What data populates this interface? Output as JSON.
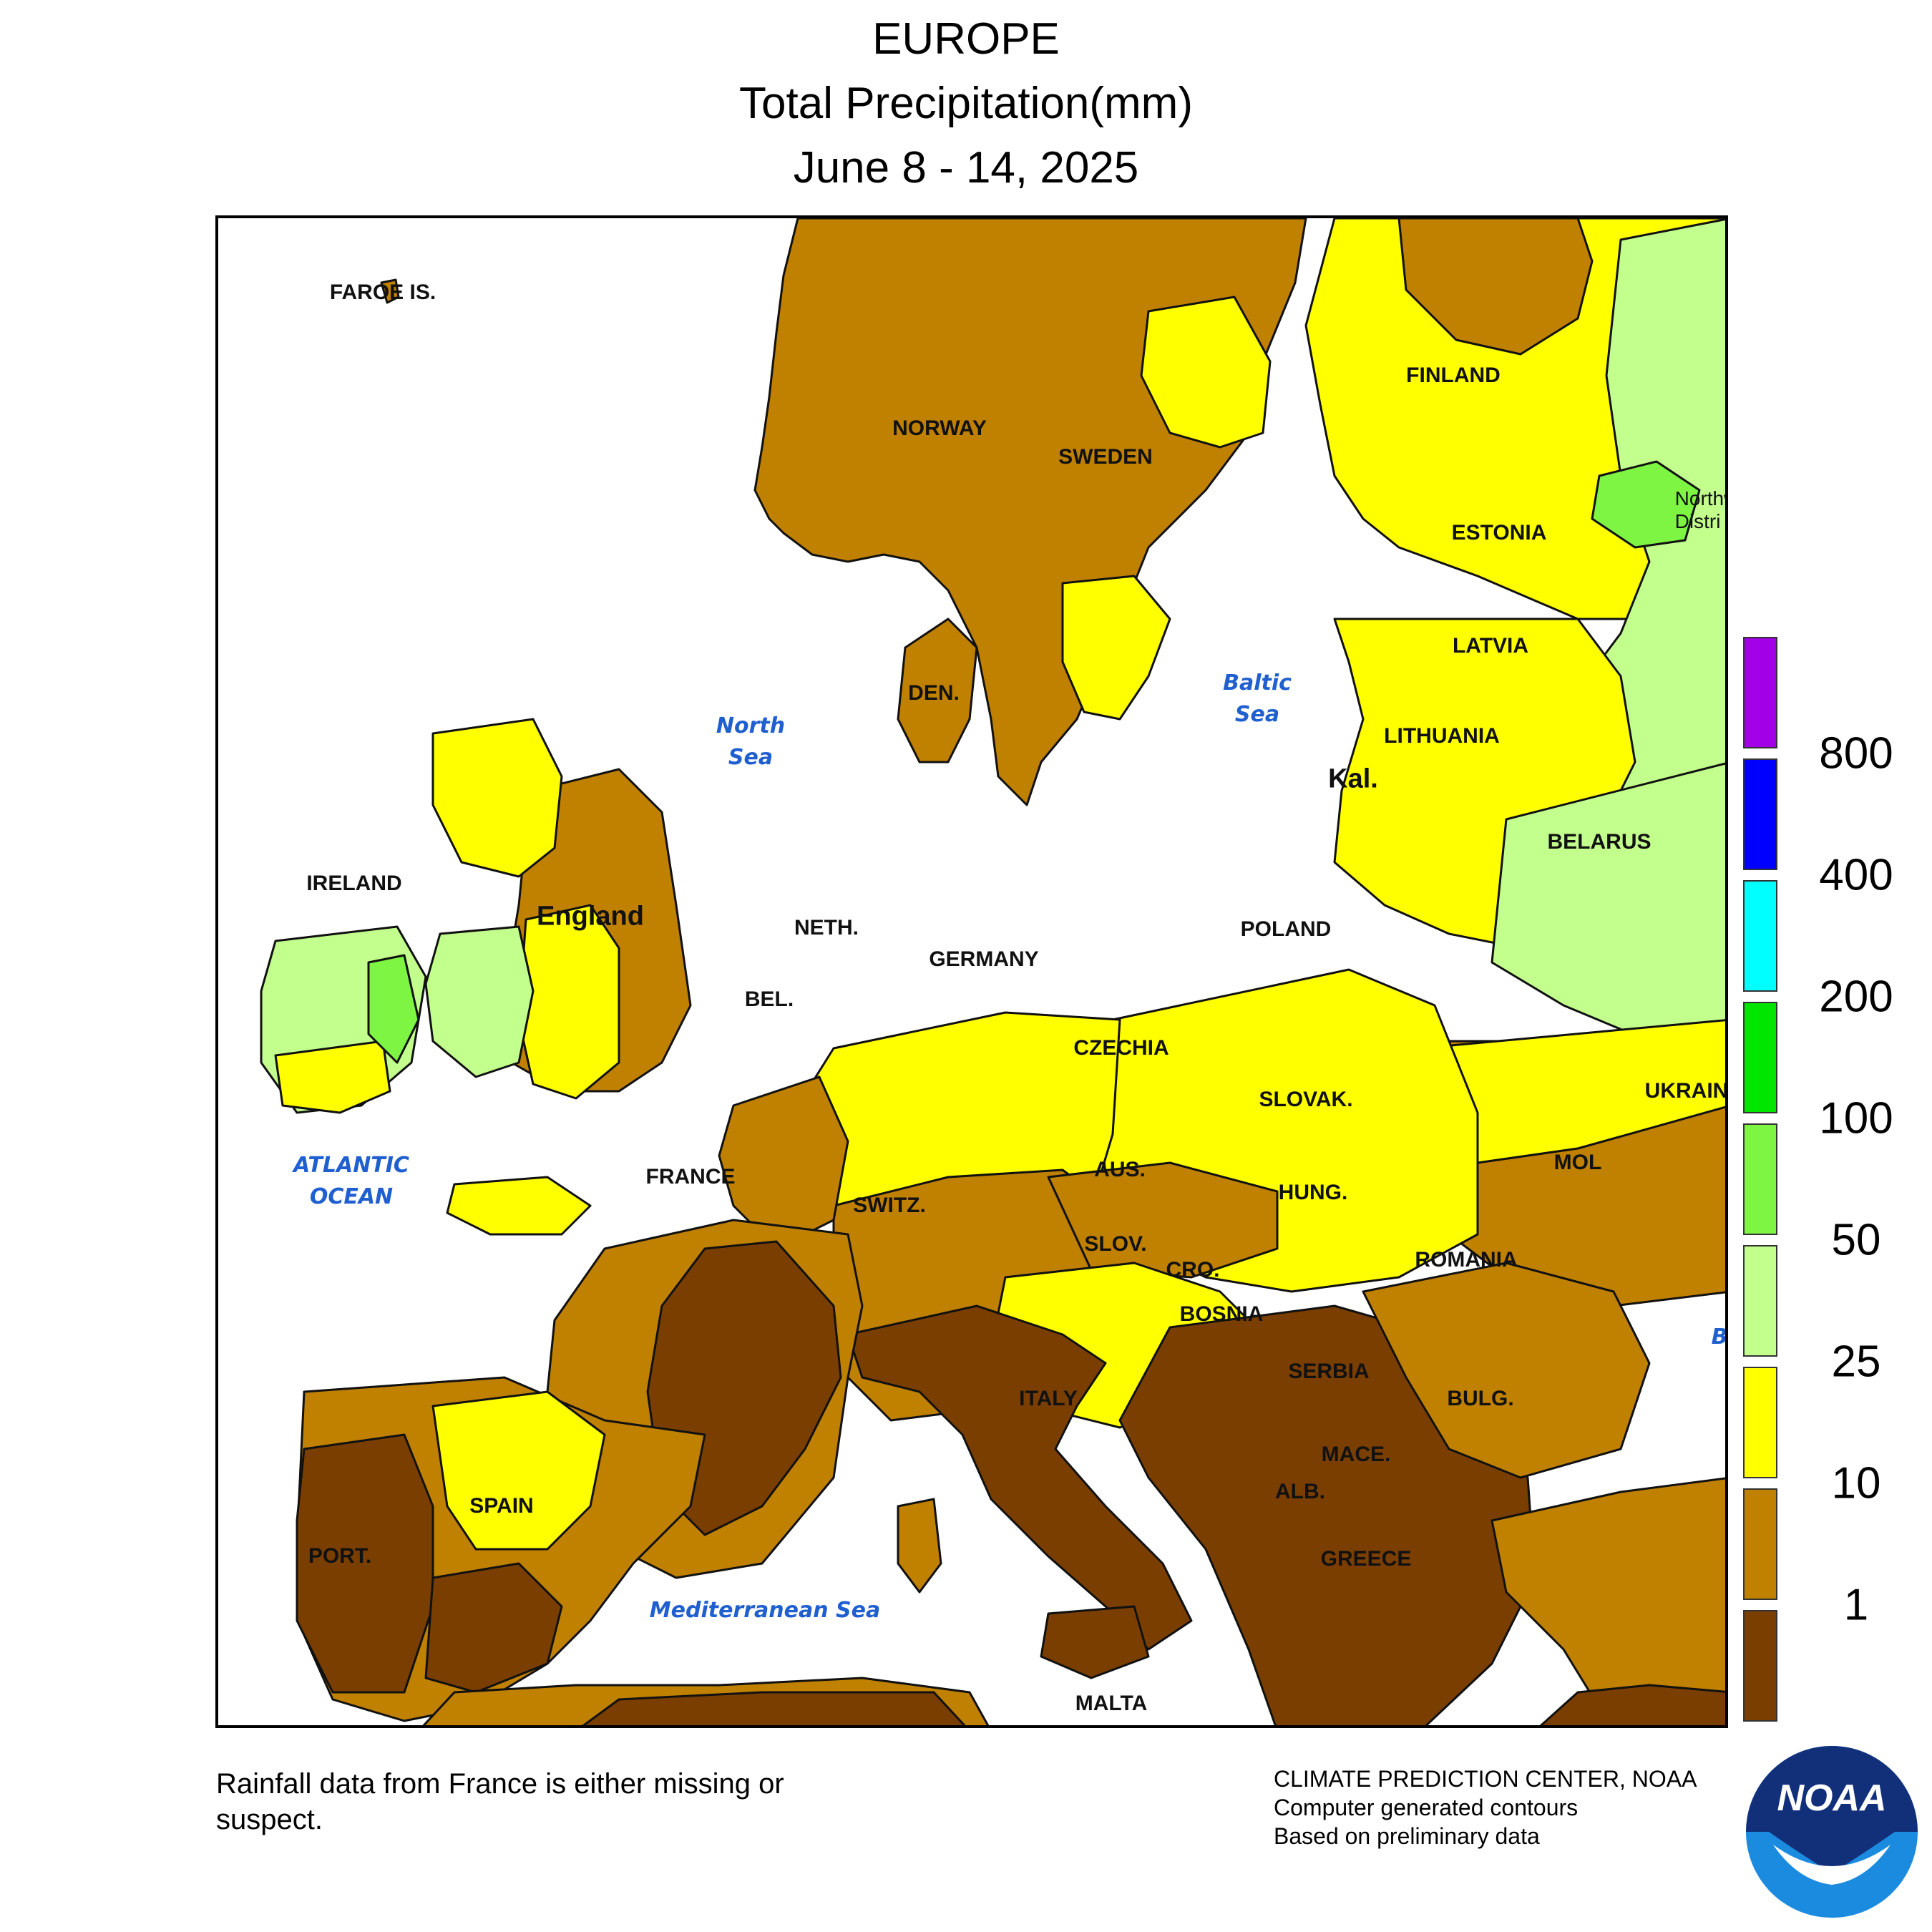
{
  "header": {
    "region": "EUROPE",
    "quantity": "Total Precipitation(mm)",
    "period": "June 8 - 14, 2025"
  },
  "map": {
    "countries": [
      "FAROE IS.",
      "NORWAY",
      "SWEDEN",
      "FINLAND",
      "ESTONIA",
      "LATVIA",
      "LITHUANIA",
      "Kal.",
      "BELARUS",
      "DEN.",
      "IRELAND",
      "England",
      "NETH.",
      "BEL.",
      "GERMANY",
      "POLAND",
      "CZECHIA",
      "SLOVAK.",
      "AUS.",
      "HUNG.",
      "SWITZ.",
      "SLOV.",
      "CRO.",
      "BOSNIA",
      "SERBIA",
      "ROMANIA",
      "MOL",
      "UKRAINE",
      "BULG.",
      "MACE.",
      "ALB.",
      "GREECE",
      "ITALY",
      "MALTA",
      "FRANCE",
      "SPAIN",
      "PORT.",
      "Northwest District"
    ],
    "water_bodies": [
      "North\nSea",
      "Baltic\nSea",
      "ATLANTIC\nOCEAN",
      "Mediterranean Sea",
      "B"
    ]
  },
  "legend": {
    "ticks": [
      "800",
      "400",
      "200",
      "100",
      "50",
      "25",
      "10",
      "1"
    ],
    "bins": [
      {
        "range": ">800",
        "color": "#a200e6"
      },
      {
        "range": "400-800",
        "color": "#0000ff"
      },
      {
        "range": "200-400",
        "color": "#00ffff"
      },
      {
        "range": "100-200",
        "color": "#00e600"
      },
      {
        "range": "50-100",
        "color": "#7ef542"
      },
      {
        "range": "25-50",
        "color": "#c3ff8c"
      },
      {
        "range": "10-25",
        "color": "#ffff00"
      },
      {
        "range": "1-10",
        "color": "#c08000"
      },
      {
        "range": "<1",
        "color": "#7a3e00"
      }
    ]
  },
  "notes": {
    "france_note": "Rainfall data from France is either missing or suspect.",
    "credit_lines": [
      "CLIMATE PREDICTION CENTER, NOAA",
      "Computer generated contours",
      "Based on preliminary data"
    ],
    "logo_text": "NOAA"
  },
  "colors": {
    "dark_brown": "#7a3e00",
    "brown": "#c08000",
    "yellow": "#ffff00",
    "light_green": "#c3ff8c",
    "green": "#7ef542",
    "water_label": "#1f5fd0"
  }
}
